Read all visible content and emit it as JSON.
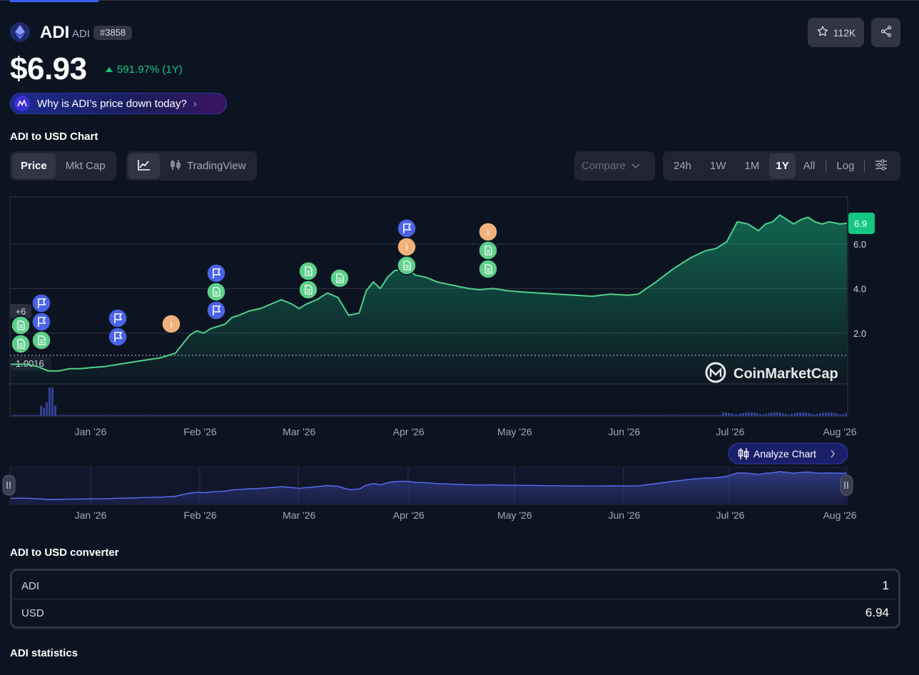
{
  "header": {
    "name": "ADI",
    "symbol": "ADI",
    "rank": "#3858",
    "watchlist_count": "112K",
    "price": "$6.93",
    "change": "591.97% (1Y)",
    "why_link": "Why is ADI’s price down today?"
  },
  "chart_section": {
    "title": "ADI to USD Chart",
    "type_tabs": [
      "Price",
      "Mkt Cap"
    ],
    "type_active": "Price",
    "tradingview_label": "TradingView",
    "compare_label": "Compare",
    "ranges": [
      "24h",
      "1W",
      "1M",
      "1Y",
      "All"
    ],
    "range_active": "1Y",
    "log_label": "Log",
    "analyze_label": "Analyze Chart",
    "watermark": "CoinMarketCap"
  },
  "chart_data": {
    "type": "area",
    "period": "1Y",
    "x_tick_labels": [
      "Jan '26",
      "Feb '26",
      "Mar '26",
      "Apr '26",
      "May '26",
      "Jun '26",
      "Jul '26",
      "Aug '26"
    ],
    "y_tick_labels": [
      "2.0",
      "4.0",
      "6.0"
    ],
    "ylim": [
      0.0,
      7.5
    ],
    "reference_line": {
      "label": "1.0016",
      "value": 1.0016
    },
    "current_value_label": "6.9",
    "series": [
      {
        "x": [
          "2025-12-14",
          "2025-12-17",
          "2025-12-20",
          "2025-12-23",
          "2025-12-26",
          "2025-12-29",
          "2026-01-01",
          "2026-01-05",
          "2026-01-09",
          "2026-01-13",
          "2026-01-17",
          "2026-01-21",
          "2026-01-25",
          "2026-01-27",
          "2026-01-29",
          "2026-01-31",
          "2026-02-02",
          "2026-02-04",
          "2026-02-06",
          "2026-02-08",
          "2026-02-10",
          "2026-02-12",
          "2026-02-15",
          "2026-02-18",
          "2026-02-21",
          "2026-02-24",
          "2026-02-27",
          "2026-03-01",
          "2026-03-03",
          "2026-03-06",
          "2026-03-09",
          "2026-03-12",
          "2026-03-15",
          "2026-03-18",
          "2026-03-20",
          "2026-03-22",
          "2026-03-24",
          "2026-03-26",
          "2026-03-28",
          "2026-03-31",
          "2026-04-03",
          "2026-04-06",
          "2026-04-09",
          "2026-04-12",
          "2026-04-15",
          "2026-04-18",
          "2026-04-21",
          "2026-04-25",
          "2026-04-29",
          "2026-05-03",
          "2026-05-08",
          "2026-05-13",
          "2026-05-18",
          "2026-05-23",
          "2026-05-28",
          "2026-06-02",
          "2026-06-05",
          "2026-06-10",
          "2026-06-15",
          "2026-06-20",
          "2026-06-24",
          "2026-06-27",
          "2026-06-30",
          "2026-07-03",
          "2026-07-06",
          "2026-07-09",
          "2026-07-11",
          "2026-07-13",
          "2026-07-15",
          "2026-07-17",
          "2026-07-19",
          "2026-07-21",
          "2026-07-23",
          "2026-07-25",
          "2026-07-27",
          "2026-07-29",
          "2026-08-01",
          "2026-08-03"
        ],
        "y": [
          0.6,
          0.5,
          0.3,
          0.3,
          0.4,
          0.4,
          0.45,
          0.5,
          0.6,
          0.7,
          0.8,
          0.9,
          1.1,
          1.5,
          1.9,
          2.1,
          2.0,
          2.2,
          2.3,
          2.4,
          2.7,
          2.8,
          3.0,
          3.1,
          3.3,
          3.5,
          3.3,
          3.1,
          3.3,
          3.5,
          3.8,
          3.6,
          2.8,
          2.9,
          3.9,
          4.3,
          4.0,
          4.5,
          4.8,
          4.9,
          4.6,
          4.5,
          4.3,
          4.2,
          4.1,
          4.0,
          3.95,
          4.0,
          3.9,
          3.85,
          3.8,
          3.75,
          3.7,
          3.65,
          3.75,
          3.7,
          3.75,
          4.3,
          4.9,
          5.4,
          5.7,
          5.8,
          6.1,
          7.0,
          6.9,
          6.6,
          6.9,
          7.0,
          7.3,
          7.1,
          6.9,
          7.1,
          7.2,
          7.0,
          6.9,
          7.0,
          6.9,
          6.93
        ]
      }
    ],
    "event_markers": [
      {
        "date": "2025-12-15",
        "kinds": [
          "news",
          "news"
        ],
        "more_label": "+6"
      },
      {
        "date": "2025-12-20",
        "kinds": [
          "flag",
          "flag",
          "news"
        ]
      },
      {
        "date": "2026-01-12",
        "kinds": [
          "flag",
          "flag"
        ]
      },
      {
        "date": "2026-01-26",
        "kinds": [
          "info"
        ]
      },
      {
        "date": "2026-02-03",
        "kinds": [
          "flag",
          "news",
          "flag"
        ]
      },
      {
        "date": "2026-03-01",
        "kinds": [
          "news",
          "news"
        ]
      },
      {
        "date": "2026-03-10",
        "kinds": [
          "news"
        ]
      },
      {
        "date": "2026-03-31",
        "kinds": [
          "flag",
          "info",
          "news"
        ]
      },
      {
        "date": "2026-04-22",
        "kinds": [
          "info",
          "news",
          "news"
        ]
      }
    ]
  },
  "converter": {
    "title": "ADI to USD converter",
    "rows": [
      {
        "label": "ADI",
        "value": "1"
      },
      {
        "label": "USD",
        "value": "6.94"
      }
    ]
  },
  "statistics": {
    "title": "ADI statistics"
  },
  "colors": {
    "background": "#0d1421",
    "up_green": "#16c784",
    "line_green": "#4fd18b",
    "flag_blue": "#4a64e8",
    "info_orange": "#f0b27a",
    "navigator_blue": "#5b6ef5"
  }
}
